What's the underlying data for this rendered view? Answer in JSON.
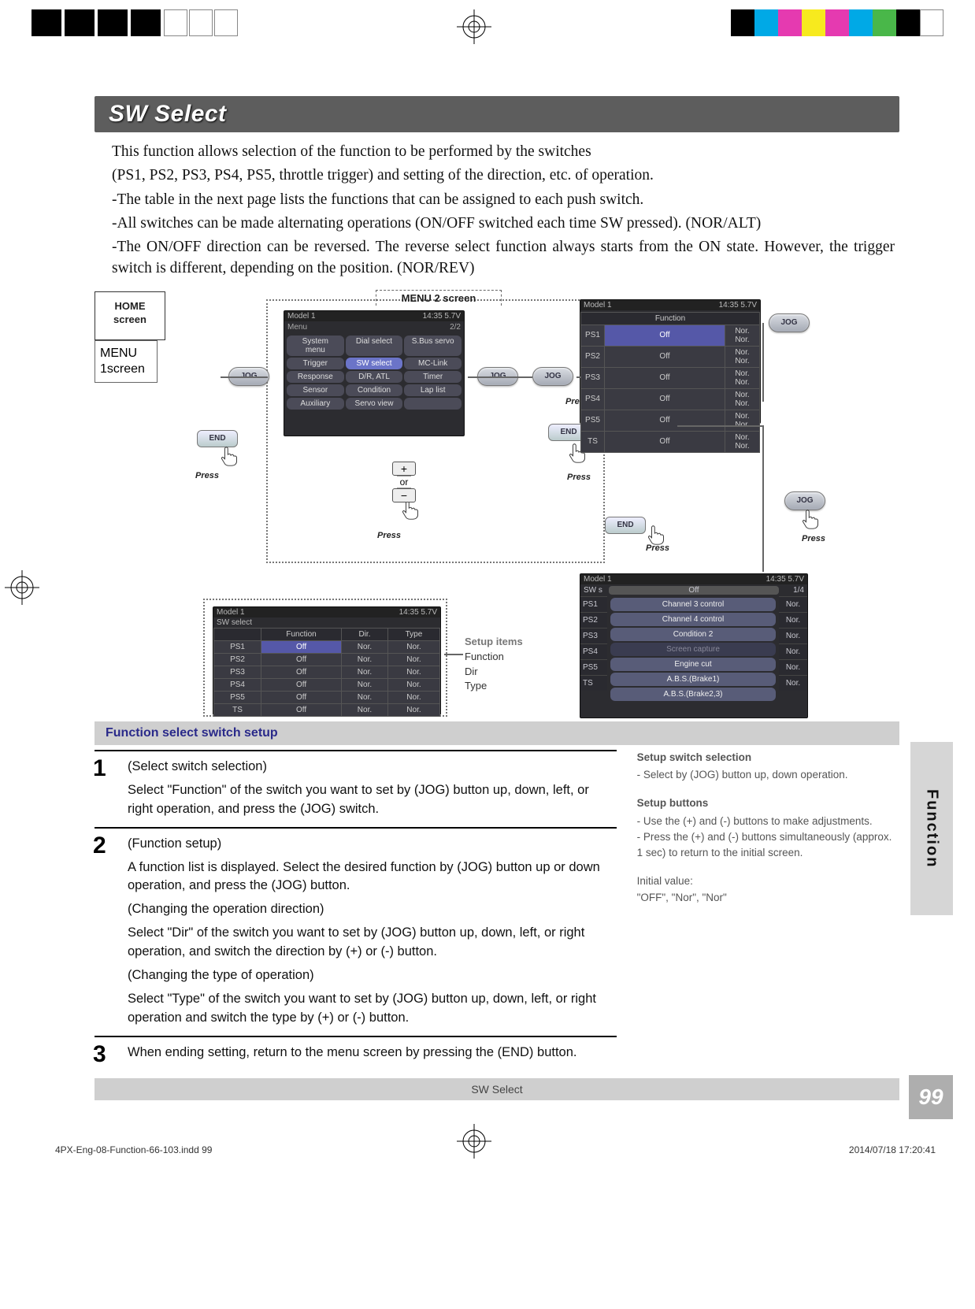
{
  "color_bar": [
    "#000000",
    "#00a9e6",
    "#e53ab0",
    "#f7ea1e",
    "#e53ab0",
    "#00a9e6",
    "#49b749",
    "#000000",
    "#ffffff"
  ],
  "page_title": "SW Select",
  "intro_lines": [
    "This function allows selection of the function to be performed by the switches",
    "(PS1, PS2, PS3, PS4, PS5, throttle trigger) and setting of the direction, etc. of operation.",
    "-The table in the next page lists the functions that can be assigned to each push switch.",
    "-All switches can be made alternating operations (ON/OFF switched each time SW pressed). (NOR/ALT)",
    "-The ON/OFF direction can be reversed. The reverse select function always starts from the ON state. However, the trigger switch is different, depending on the position. (NOR/REV)"
  ],
  "labels": {
    "home": "HOME\nscreen",
    "menu2": "MENU 2 screen",
    "menu1": "MENU\n1screen",
    "jog": "JOG",
    "end": "END",
    "press": "Press",
    "or": "or",
    "setup_items_title": "Setup items",
    "setup_items": [
      "Function",
      "Dir",
      "Type"
    ]
  },
  "menu2_buttons": [
    "System menu",
    "Dial select",
    "S.Bus servo",
    "Trigger",
    "SW select",
    "MC-Link",
    "Response",
    "D/R, ATL",
    "Timer",
    "Sensor",
    "Condition",
    "Lap list",
    "Auxiliary",
    "Servo view",
    ""
  ],
  "sw_table": {
    "title_left": "Model 1",
    "title_right": "14:35 5.7V",
    "subtitle": "SW select",
    "headers": [
      "",
      "Function",
      "Dir.",
      "Type"
    ],
    "rows": [
      [
        "PS1",
        "Off",
        "Nor.",
        "Nor."
      ],
      [
        "PS2",
        "Off",
        "Nor.",
        "Nor."
      ],
      [
        "PS3",
        "Off",
        "Nor.",
        "Nor."
      ],
      [
        "PS4",
        "Off",
        "Nor.",
        "Nor."
      ],
      [
        "PS5",
        "Off",
        "Nor.",
        "Nor."
      ],
      [
        "TS",
        "Off",
        "Nor.",
        "Nor."
      ]
    ]
  },
  "func_screen": {
    "header": "Function",
    "rows": [
      "Off",
      "Off",
      "Off",
      "Off",
      "Off",
      "Off"
    ]
  },
  "popup_list": {
    "title_left": "SW s",
    "title_mid": "Off",
    "title_right": "1/4",
    "left_labels": [
      "PS1",
      "PS2",
      "PS3",
      "PS4",
      "PS5",
      "TS"
    ],
    "items": [
      "Channel 3 control",
      "Channel 4 control",
      "Condition 2",
      "Screen capture",
      "Engine cut",
      "A.B.S.(Brake1)",
      "A.B.S.(Brake2,3)"
    ],
    "right_col": "Nor."
  },
  "section_banner": "Function select switch setup",
  "steps": [
    {
      "num": "1",
      "title": "(Select switch selection)",
      "body": "Select \"Function\" of the switch you want to set by (JOG) button up, down, left, or right operation, and press the (JOG) switch."
    },
    {
      "num": "2",
      "title": "(Function setup)",
      "body": "A function list is displayed. Select the desired function by (JOG) button up or down operation, and press the (JOG) button.",
      "extra": [
        {
          "h": "(Changing the operation direction)",
          "b": "Select \"Dir\" of the switch you want to set by (JOG) button up, down, left, or right operation, and switch the direction by (+) or (-) button."
        },
        {
          "h": "(Changing the type of operation)",
          "b": "Select \"Type\" of the switch you want to set by (JOG) button up, down, left, or right operation and switch the type by (+) or (-) button."
        }
      ]
    },
    {
      "num": "3",
      "body": "When ending setting, return to the menu screen by pressing the (END) button."
    }
  ],
  "side_help": [
    {
      "hd": "Setup switch selection",
      "lines": [
        "- Select by (JOG) button up, down operation."
      ]
    },
    {
      "hd": "Setup buttons",
      "lines": [
        "- Use the (+) and (-) buttons to make adjustments.",
        "- Press the (+) and (-) buttons simultaneously (approx. 1 sec) to return to the initial screen."
      ]
    },
    {
      "hd": "",
      "lines": [
        "Initial value:",
        "\"OFF\", \"Nor\", \"Nor\""
      ]
    }
  ],
  "footer_label": "SW Select",
  "side_tab": "Function",
  "page_number": "99",
  "indd": {
    "file": "4PX-Eng-08-Function-66-103.indd   99",
    "datetime": "2014/07/18   17:20:41"
  },
  "colors": {
    "title_bg": "#5d5d5d",
    "banner_bg": "#cfcfcf",
    "banner_text": "#2a2a8a",
    "tab_bg": "#d6d6d6",
    "pagenum_bg": "#aeaeae",
    "lcd_bg": "#2c2c30",
    "jog_grad_top": "#d9dce2",
    "jog_grad_bot": "#a5aab5"
  }
}
